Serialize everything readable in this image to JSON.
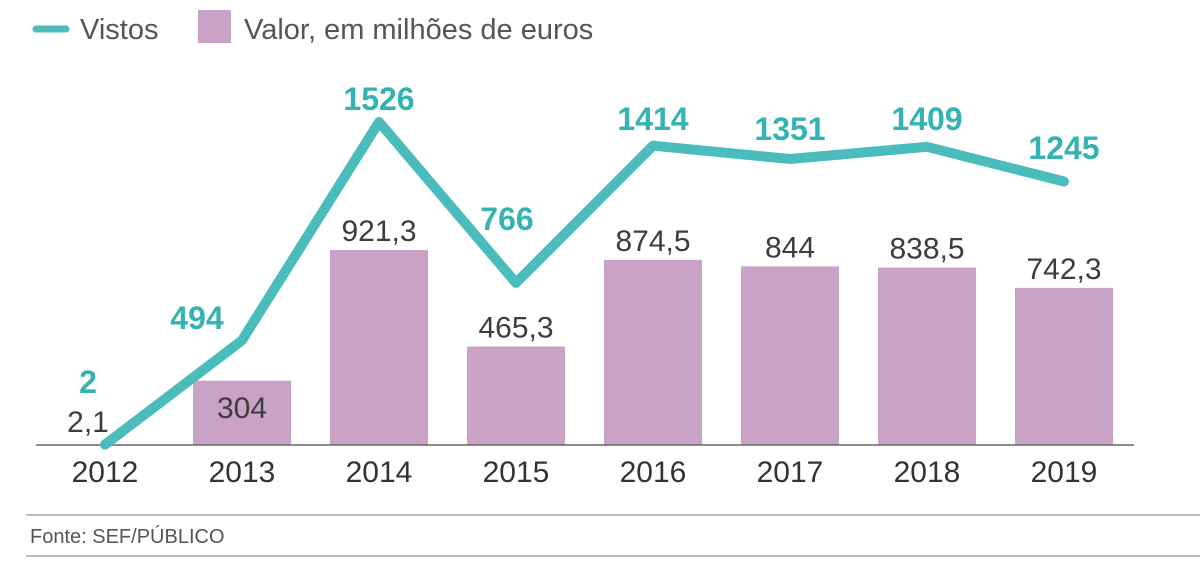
{
  "colors": {
    "line": "#4bbcbc",
    "line_label": "#35b3b3",
    "bar": "#c9a3c5",
    "axis": "#666666"
  },
  "legend": [
    {
      "name": "Vistos",
      "symbol": "line"
    },
    {
      "name": "Valor, em milhões de euros",
      "symbol": "box"
    }
  ],
  "source": "Fonte: SEF/PÚBLICO",
  "chart_data": {
    "type": "bar",
    "categories": [
      "2012",
      "2013",
      "2014",
      "2015",
      "2016",
      "2017",
      "2018",
      "2019"
    ],
    "series": [
      {
        "name": "Valor, em milhões de euros",
        "type": "bar",
        "values": [
          2.1,
          304,
          921.3,
          465.3,
          874.5,
          844,
          838.5,
          742.3
        ],
        "labels": [
          "2,1",
          "304",
          "921,3",
          "465,3",
          "874,5",
          "844",
          "838,5",
          "742,3"
        ]
      },
      {
        "name": "Vistos",
        "type": "line",
        "values": [
          2,
          494,
          1526,
          766,
          1414,
          1351,
          1409,
          1245
        ],
        "labels": [
          "2",
          "494",
          "1526",
          "766",
          "1414",
          "1351",
          "1409",
          "1245"
        ]
      }
    ],
    "legend_position": "top-left",
    "grid": false,
    "y_axis_shown": false
  }
}
